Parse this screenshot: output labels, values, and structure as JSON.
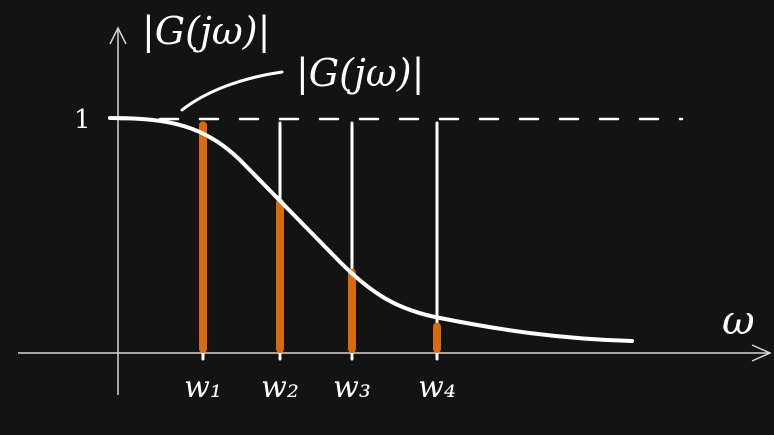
{
  "diagram": {
    "y_axis_label": "|G(jω)|",
    "curve_label": "|G(jω)|",
    "x_axis_label": "ω",
    "one_label": "1",
    "frequencies": [
      {
        "label": "w₁",
        "magnitude": 0.99
      },
      {
        "label": "w₂",
        "magnitude": 0.66
      },
      {
        "label": "w₃",
        "magnitude": 0.36
      },
      {
        "label": "w₄",
        "magnitude": 0.13
      }
    ],
    "colors": {
      "background": "#131313",
      "ink": "#ffffff",
      "axis": "#d6d6d6",
      "highlight": "#d96a0b"
    }
  }
}
